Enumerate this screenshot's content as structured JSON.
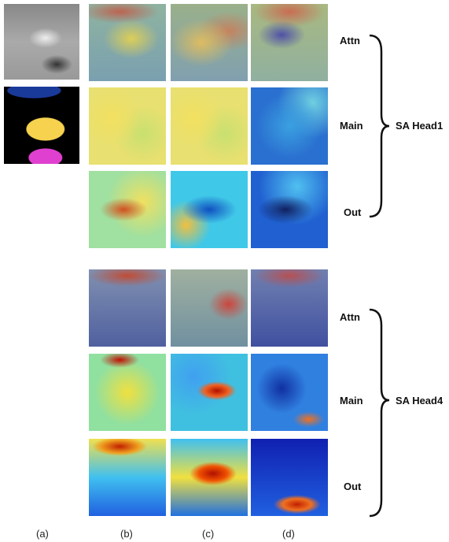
{
  "groups": [
    {
      "name": "SA Head1",
      "rows": [
        "Attn",
        "Main",
        "Out"
      ]
    },
    {
      "name": "SA Head4",
      "rows": [
        "Attn",
        "Main",
        "Out"
      ]
    }
  ],
  "columns": [
    "(a)",
    "(b)",
    "(c)",
    "(d)"
  ]
}
